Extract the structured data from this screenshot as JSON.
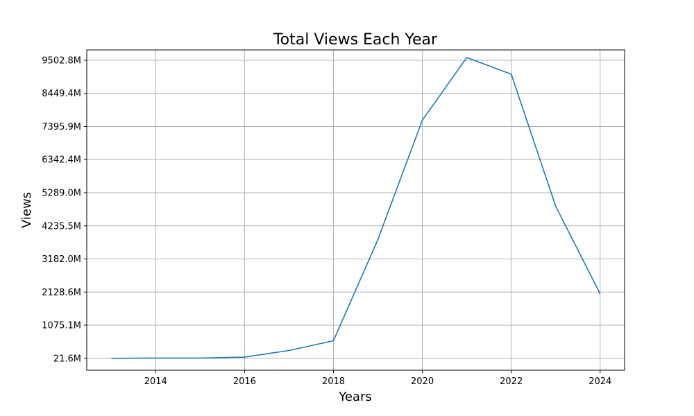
{
  "chart_data": {
    "type": "line",
    "title": "Total Views Each Year",
    "xlabel": "Years",
    "ylabel": "Views",
    "xlim": [
      2012.45,
      2024.55
    ],
    "ylim": [
      -358.2,
      9833.0
    ],
    "x_ticks": [
      2014,
      2016,
      2018,
      2020,
      2022,
      2024
    ],
    "y_ticks": [
      {
        "value": 21.6,
        "label": "21.6M"
      },
      {
        "value": 1075.1,
        "label": "1075.1M"
      },
      {
        "value": 2128.6,
        "label": "2128.6M"
      },
      {
        "value": 3182.0,
        "label": "3182.0M"
      },
      {
        "value": 4235.5,
        "label": "4235.5M"
      },
      {
        "value": 5289.0,
        "label": "5289.0M"
      },
      {
        "value": 6342.4,
        "label": "6342.4M"
      },
      {
        "value": 7395.9,
        "label": "7395.9M"
      },
      {
        "value": 8449.4,
        "label": "8449.4M"
      },
      {
        "value": 9502.8,
        "label": "9502.8M"
      }
    ],
    "grid": true,
    "series": [
      {
        "color": "#1f77b4",
        "x": [
          2013,
          2014,
          2015,
          2016,
          2017,
          2018,
          2019,
          2020,
          2021,
          2022,
          2023,
          2024
        ],
        "values": [
          21.6,
          30,
          30,
          60,
          270,
          580,
          3800,
          7600,
          9590,
          9060,
          4860,
          2070
        ]
      }
    ]
  }
}
